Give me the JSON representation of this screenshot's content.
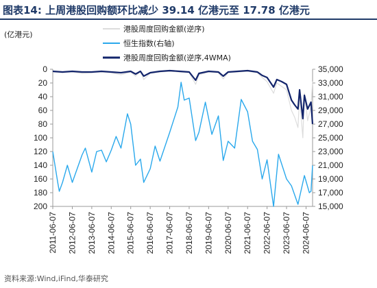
{
  "figure": {
    "title": "图表14:  上周港股回购额环比减少 39.14 亿港元至 17.78 亿港元",
    "source": "资料来源:Wind,iFind,华泰研究"
  },
  "colors": {
    "buyback_weekly": "#dcdcdc",
    "hsi": "#29a8ec",
    "buyback_4wma": "#12246b",
    "axis": "#999999",
    "title": "#1f3a68"
  },
  "chart_data": {
    "type": "line",
    "title": "",
    "left_axis": {
      "unit_label": "(亿港元)",
      "inverted": true,
      "range": [
        0,
        200
      ],
      "ticks": [
        0,
        20,
        40,
        60,
        80,
        100,
        120,
        140,
        160,
        180,
        200
      ]
    },
    "right_axis": {
      "range": [
        15000,
        35000
      ],
      "ticks": [
        "15,000",
        "17,000",
        "19,000",
        "21,000",
        "23,000",
        "25,000",
        "27,000",
        "29,000",
        "31,000",
        "33,000",
        "35,000"
      ]
    },
    "x_axis": {
      "range": [
        "2011-06-07",
        "2024-10-07"
      ],
      "ticks": [
        "2011-06-07",
        "2012-06-07",
        "2013-06-07",
        "2014-06-07",
        "2015-06-07",
        "2016-06-07",
        "2017-06-07",
        "2018-06-07",
        "2019-06-07",
        "2020-06-07",
        "2021-06-07",
        "2022-06-07",
        "2023-06-07",
        "2024-06-07"
      ]
    },
    "grid": false,
    "legend_position": "top",
    "series": [
      {
        "name": "港股周度回购金额(逆序)",
        "axis": "left",
        "points": [
          [
            "2011-06-07",
            4
          ],
          [
            "2011-12-07",
            5
          ],
          [
            "2012-06-07",
            4
          ],
          [
            "2012-12-07",
            6
          ],
          [
            "2013-06-07",
            5
          ],
          [
            "2013-12-07",
            4
          ],
          [
            "2014-06-07",
            5
          ],
          [
            "2014-12-07",
            8
          ],
          [
            "2015-06-07",
            4
          ],
          [
            "2015-09-07",
            10
          ],
          [
            "2015-12-07",
            3
          ],
          [
            "2016-02-07",
            15
          ],
          [
            "2016-06-07",
            6
          ],
          [
            "2016-12-07",
            4
          ],
          [
            "2017-06-07",
            3
          ],
          [
            "2017-12-07",
            4
          ],
          [
            "2018-06-07",
            5
          ],
          [
            "2018-10-07",
            22
          ],
          [
            "2018-12-07",
            8
          ],
          [
            "2019-06-07",
            4
          ],
          [
            "2019-12-07",
            5
          ],
          [
            "2020-03-07",
            14
          ],
          [
            "2020-06-07",
            5
          ],
          [
            "2020-12-07",
            4
          ],
          [
            "2021-06-07",
            3
          ],
          [
            "2021-12-07",
            5
          ],
          [
            "2022-03-07",
            12
          ],
          [
            "2022-06-07",
            18
          ],
          [
            "2022-10-07",
            35
          ],
          [
            "2022-12-07",
            20
          ],
          [
            "2023-03-07",
            25
          ],
          [
            "2023-06-07",
            30
          ],
          [
            "2023-09-07",
            60
          ],
          [
            "2023-11-07",
            70
          ],
          [
            "2024-01-07",
            85
          ],
          [
            "2024-02-07",
            40
          ],
          [
            "2024-04-07",
            100
          ],
          [
            "2024-05-07",
            35
          ],
          [
            "2024-07-07",
            75
          ],
          [
            "2024-09-07",
            55
          ],
          [
            "2024-10-07",
            18
          ]
        ]
      },
      {
        "name": "恒生指数(右轴)",
        "axis": "right",
        "points": [
          [
            "2011-06-07",
            23000
          ],
          [
            "2011-09-07",
            18500
          ],
          [
            "2011-10-07",
            17200
          ],
          [
            "2011-12-07",
            18500
          ],
          [
            "2012-03-07",
            21000
          ],
          [
            "2012-06-07",
            18500
          ],
          [
            "2012-09-07",
            20500
          ],
          [
            "2012-12-07",
            22500
          ],
          [
            "2013-02-07",
            23500
          ],
          [
            "2013-06-07",
            20000
          ],
          [
            "2013-09-07",
            23000
          ],
          [
            "2013-12-07",
            23200
          ],
          [
            "2014-03-07",
            21500
          ],
          [
            "2014-06-07",
            23200
          ],
          [
            "2014-09-07",
            25200
          ],
          [
            "2014-12-07",
            23500
          ],
          [
            "2015-04-07",
            28500
          ],
          [
            "2015-06-07",
            27000
          ],
          [
            "2015-09-07",
            21000
          ],
          [
            "2015-12-07",
            21900
          ],
          [
            "2016-02-07",
            18500
          ],
          [
            "2016-06-07",
            20500
          ],
          [
            "2016-09-07",
            23800
          ],
          [
            "2016-12-07",
            21600
          ],
          [
            "2017-06-07",
            25800
          ],
          [
            "2017-11-07",
            29500
          ],
          [
            "2018-01-07",
            33100
          ],
          [
            "2018-03-07",
            30500
          ],
          [
            "2018-06-07",
            30800
          ],
          [
            "2018-10-07",
            24600
          ],
          [
            "2018-12-07",
            25800
          ],
          [
            "2019-04-07",
            30200
          ],
          [
            "2019-08-07",
            25500
          ],
          [
            "2019-12-07",
            28200
          ],
          [
            "2020-03-07",
            21700
          ],
          [
            "2020-06-07",
            24500
          ],
          [
            "2020-10-07",
            23500
          ],
          [
            "2021-02-07",
            30600
          ],
          [
            "2021-06-07",
            28800
          ],
          [
            "2021-09-07",
            24500
          ],
          [
            "2021-12-07",
            23300
          ],
          [
            "2022-03-07",
            19000
          ],
          [
            "2022-06-07",
            21800
          ],
          [
            "2022-10-07",
            15000
          ],
          [
            "2023-01-07",
            22600
          ],
          [
            "2023-06-07",
            19000
          ],
          [
            "2023-09-07",
            18000
          ],
          [
            "2024-01-07",
            15300
          ],
          [
            "2024-05-07",
            19500
          ],
          [
            "2024-08-07",
            17000
          ],
          [
            "2024-09-07",
            17200
          ],
          [
            "2024-10-07",
            21000
          ]
        ]
      },
      {
        "name": "港股周度回购金额(逆序,4WMA)",
        "axis": "left",
        "points": [
          [
            "2011-06-07",
            3
          ],
          [
            "2011-12-07",
            4
          ],
          [
            "2012-06-07",
            3
          ],
          [
            "2012-12-07",
            4
          ],
          [
            "2013-06-07",
            4
          ],
          [
            "2013-12-07",
            3
          ],
          [
            "2014-06-07",
            4
          ],
          [
            "2014-12-07",
            5
          ],
          [
            "2015-06-07",
            3
          ],
          [
            "2015-09-07",
            7
          ],
          [
            "2015-12-07",
            3
          ],
          [
            "2016-02-07",
            10
          ],
          [
            "2016-06-07",
            5
          ],
          [
            "2016-12-07",
            3
          ],
          [
            "2017-06-07",
            2
          ],
          [
            "2017-12-07",
            3
          ],
          [
            "2018-06-07",
            4
          ],
          [
            "2018-10-07",
            16
          ],
          [
            "2018-12-07",
            6
          ],
          [
            "2019-06-07",
            3
          ],
          [
            "2019-12-07",
            4
          ],
          [
            "2020-03-07",
            10
          ],
          [
            "2020-06-07",
            4
          ],
          [
            "2020-12-07",
            3
          ],
          [
            "2021-06-07",
            2
          ],
          [
            "2021-12-07",
            4
          ],
          [
            "2022-03-07",
            9
          ],
          [
            "2022-06-07",
            12
          ],
          [
            "2022-10-07",
            26
          ],
          [
            "2022-12-07",
            15
          ],
          [
            "2023-03-07",
            18
          ],
          [
            "2023-06-07",
            22
          ],
          [
            "2023-09-07",
            45
          ],
          [
            "2023-11-07",
            52
          ],
          [
            "2024-01-07",
            58
          ],
          [
            "2024-02-07",
            30
          ],
          [
            "2024-04-07",
            72
          ],
          [
            "2024-05-07",
            38
          ],
          [
            "2024-07-07",
            58
          ],
          [
            "2024-09-07",
            48
          ],
          [
            "2024-10-07",
            80
          ]
        ]
      }
    ]
  }
}
